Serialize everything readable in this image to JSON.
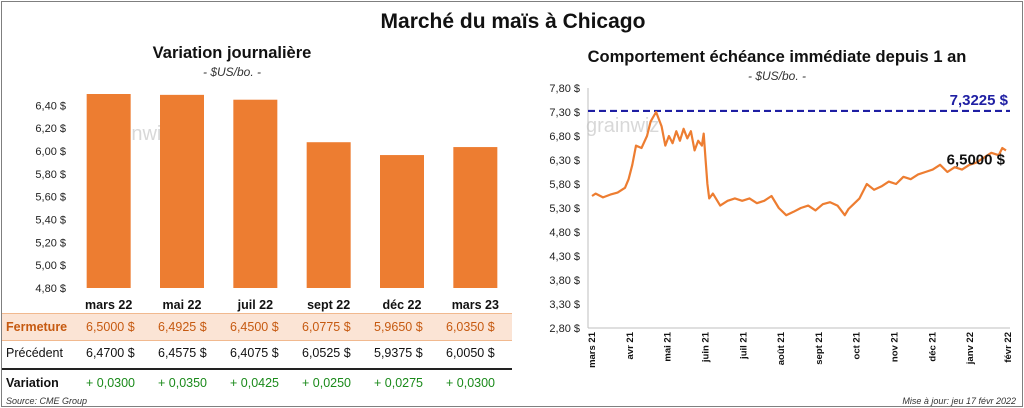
{
  "title": "Marché du maïs à Chicago",
  "left_panel": {
    "title": "Variation journalière",
    "subtitle": "- $US/bo. -"
  },
  "right_panel": {
    "title": "Comportement échéance immédiate depuis 1 an",
    "subtitle": "- $US/bo. -"
  },
  "watermark": "grainwiz",
  "table": {
    "rows": [
      {
        "label": "Fermeture",
        "values": [
          "6,5000  $",
          "6,4925  $",
          "6,4500  $",
          "6,0775  $",
          "5,9650  $",
          "6,0350  $"
        ]
      },
      {
        "label": "Précédent",
        "values": [
          "6,4700  $",
          "6,4575  $",
          "6,4075  $",
          "6,0525  $",
          "5,9375  $",
          "6,0050  $"
        ]
      },
      {
        "label": "Variation",
        "values": [
          "+ 0,0300",
          "+ 0,0350",
          "+ 0,0425",
          "+ 0,0250",
          "+ 0,0275",
          "+ 0,0300"
        ]
      }
    ]
  },
  "footer": {
    "source": "Source: CME Group",
    "updated": "Mise à jour: jeu 17 févr 2022"
  },
  "colors": {
    "bar": "#ed7d31",
    "line": "#ed7d31",
    "dashed": "#1f1fa3",
    "table_highlight": "#fbe4d5",
    "positive": "#1a8a1a"
  },
  "chart_data": [
    {
      "type": "bar",
      "title": "Variation journalière",
      "subtitle": "- $US/bo. -",
      "categories": [
        "mars 22",
        "mai 22",
        "juil 22",
        "sept 22",
        "déc 22",
        "mars 23"
      ],
      "values": [
        6.5,
        6.4925,
        6.45,
        6.0775,
        5.965,
        6.035
      ],
      "ylim": [
        4.8,
        6.5
      ],
      "yticks": [
        "4,80 $",
        "5,00 $",
        "5,20 $",
        "5,40 $",
        "5,60 $",
        "5,80 $",
        "6,00 $",
        "6,20 $",
        "6,40 $"
      ],
      "grid": false
    },
    {
      "type": "line",
      "title": "Comportement échéance immédiate depuis 1 an",
      "subtitle": "- $US/bo. -",
      "x_ticks": [
        "mars 21",
        "avr 21",
        "mai 21",
        "juin 21",
        "juil 21",
        "août 21",
        "sept 21",
        "oct 21",
        "nov 21",
        "déc 21",
        "janv 22",
        "févr 22"
      ],
      "yticks": [
        "2,80 $",
        "3,30 $",
        "3,80 $",
        "4,30 $",
        "4,80 $",
        "5,30 $",
        "5,80 $",
        "6,30 $",
        "6,80 $",
        "7,30 $",
        "7,80 $"
      ],
      "ylim": [
        2.8,
        7.8
      ],
      "reference_line": {
        "value": 7.3225,
        "label": "7,3225 $"
      },
      "last_value_label": "6,5000 $",
      "series": [
        {
          "x": [
            0,
            0.1,
            0.3,
            0.5,
            0.7,
            0.9,
            1.0,
            1.1,
            1.2,
            1.35,
            1.5,
            1.6,
            1.75,
            1.9,
            2.0,
            2.1,
            2.2,
            2.3,
            2.4,
            2.5,
            2.6,
            2.7,
            2.8,
            2.9,
            3.0,
            3.05,
            3.1,
            3.15,
            3.2,
            3.3,
            3.5,
            3.7,
            3.9,
            4.1,
            4.3,
            4.5,
            4.7,
            4.9,
            5.1,
            5.3,
            5.5,
            5.7,
            5.9,
            6.1,
            6.3,
            6.5,
            6.7,
            6.9,
            7.0,
            7.1,
            7.3,
            7.5,
            7.7,
            7.9,
            8.1,
            8.3,
            8.5,
            8.7,
            8.9,
            9.1,
            9.3,
            9.5,
            9.7,
            9.9,
            10.1,
            10.3,
            10.5,
            10.7,
            10.9,
            11.1,
            11.2,
            11.3
          ],
          "values": [
            5.55,
            5.6,
            5.52,
            5.58,
            5.62,
            5.72,
            5.9,
            6.2,
            6.6,
            6.55,
            6.8,
            7.1,
            7.3,
            7.0,
            6.6,
            6.8,
            6.65,
            6.9,
            6.7,
            6.95,
            6.75,
            6.9,
            6.5,
            6.7,
            6.6,
            6.85,
            6.3,
            5.8,
            5.5,
            5.6,
            5.35,
            5.45,
            5.5,
            5.45,
            5.5,
            5.4,
            5.45,
            5.55,
            5.3,
            5.15,
            5.22,
            5.3,
            5.35,
            5.25,
            5.38,
            5.42,
            5.35,
            5.15,
            5.28,
            5.35,
            5.5,
            5.8,
            5.68,
            5.75,
            5.85,
            5.8,
            5.95,
            5.9,
            6.0,
            6.05,
            6.1,
            6.2,
            6.05,
            6.15,
            6.1,
            6.2,
            6.25,
            6.35,
            6.45,
            6.4,
            6.55,
            6.5
          ]
        }
      ]
    }
  ]
}
